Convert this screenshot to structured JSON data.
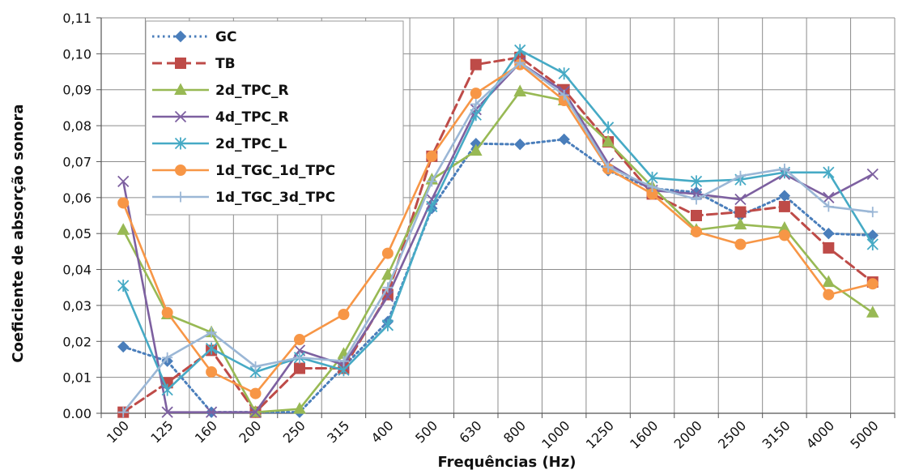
{
  "chart_data": {
    "type": "line",
    "title": "",
    "xlabel": "Frequências (Hz)",
    "ylabel": "Coeficiente de absorção sonora",
    "ylim": [
      0,
      0.11
    ],
    "yticks": [
      "0.00",
      "0,01",
      "0,02",
      "0,03",
      "0,04",
      "0,05",
      "0,06",
      "0,07",
      "0,08",
      "0,09",
      "0,10",
      "0,11"
    ],
    "grid": "horizontal and vertical gridlines",
    "legend_position": "top-left",
    "categories": [
      "100",
      "125",
      "160",
      "200",
      "250",
      "315",
      "400",
      "500",
      "630",
      "800",
      "1000",
      "1250",
      "1600",
      "2000",
      "2500",
      "3150",
      "4000",
      "5000"
    ],
    "series": [
      {
        "name": "GC",
        "color": "#4a7ebb",
        "dash": "dotted",
        "marker": "diamond",
        "values": [
          0.0185,
          0.0145,
          0.0003,
          0.0003,
          0.0003,
          0.013,
          0.0255,
          0.057,
          0.075,
          0.0748,
          0.0762,
          0.0675,
          0.0625,
          0.0615,
          0.055,
          0.0605,
          0.05,
          0.0495
        ]
      },
      {
        "name": "TB",
        "color": "#be4b48",
        "dash": "dashed",
        "marker": "square",
        "values": [
          0.0003,
          0.0085,
          0.0175,
          0.0003,
          0.0125,
          0.0125,
          0.033,
          0.0715,
          0.097,
          0.099,
          0.09,
          0.0755,
          0.061,
          0.055,
          0.056,
          0.0575,
          0.046,
          0.0365
        ]
      },
      {
        "name": "2d_TPC_R",
        "color": "#98b954",
        "dash": "solid",
        "marker": "triangle",
        "values": [
          0.051,
          0.0275,
          0.0225,
          0.0003,
          0.0012,
          0.0165,
          0.0385,
          0.065,
          0.073,
          0.0895,
          0.087,
          0.0755,
          0.063,
          0.051,
          0.0525,
          0.0515,
          0.0365,
          0.028
        ]
      },
      {
        "name": "4d_TPC_R",
        "color": "#7d60a0",
        "dash": "solid",
        "marker": "x",
        "values": [
          0.0645,
          0.0003,
          0.0003,
          0.0003,
          0.0175,
          0.0135,
          0.0325,
          0.0595,
          0.0845,
          0.0975,
          0.0895,
          0.0695,
          0.062,
          0.061,
          0.0595,
          0.0665,
          0.06,
          0.0665
        ]
      },
      {
        "name": "2d_TPC_L",
        "color": "#46aac5",
        "dash": "solid",
        "marker": "star",
        "values": [
          0.0355,
          0.0065,
          0.018,
          0.0115,
          0.0155,
          0.012,
          0.0245,
          0.0575,
          0.083,
          0.101,
          0.0945,
          0.0795,
          0.0655,
          0.0645,
          0.065,
          0.067,
          0.067,
          0.047
        ]
      },
      {
        "name": "1d_TGC_1d_TPC",
        "color": "#f79646",
        "dash": "solid",
        "marker": "circle",
        "values": [
          0.0585,
          0.028,
          0.0115,
          0.0055,
          0.0205,
          0.0275,
          0.0445,
          0.0715,
          0.089,
          0.097,
          0.087,
          0.068,
          0.061,
          0.0505,
          0.047,
          0.0495,
          0.033,
          0.036
        ]
      },
      {
        "name": "1d_TGC_3d_TPC",
        "color": "#9bb7d6",
        "dash": "solid",
        "marker": "plus",
        "values": [
          0.0003,
          0.0155,
          0.0225,
          0.013,
          0.0155,
          0.0145,
          0.035,
          0.0645,
          0.086,
          0.0975,
          0.0885,
          0.0685,
          0.063,
          0.0595,
          0.066,
          0.068,
          0.0575,
          0.056
        ]
      }
    ]
  }
}
